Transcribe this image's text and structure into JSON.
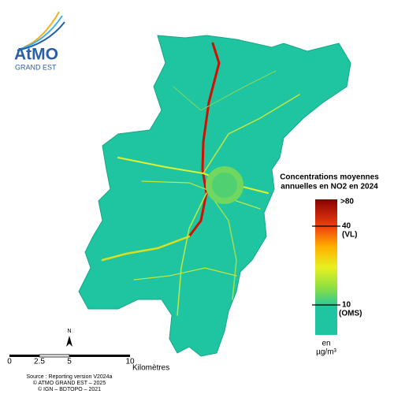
{
  "logo": {
    "name": "AtMO",
    "region": "GRAND EST"
  },
  "legend": {
    "title": [
      "Concentrations moyennes",
      "annuelles en NO2 en 2024"
    ],
    "labels": [
      ">80",
      "40",
      "(VL)",
      "10",
      "(OMS)"
    ],
    "unit": [
      "en",
      "µg/m³"
    ]
  },
  "scale_bar": {
    "labels": [
      "0",
      "2.5",
      "5",
      "10"
    ],
    "unit": "Kilomètres"
  },
  "north": "N",
  "source": [
    "Source : Reporting version V2024a",
    "© ATMO GRAND EST – 2025",
    "© IGN – BDTOPO – 2021"
  ]
}
